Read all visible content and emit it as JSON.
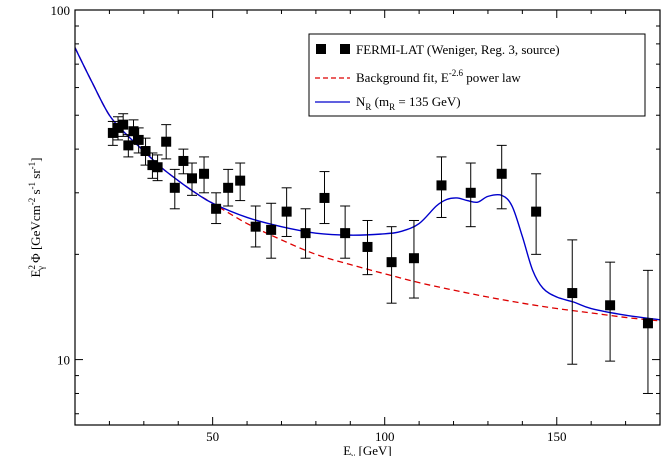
{
  "chart_data": {
    "type": "scatter",
    "xlabel_main": "E",
    "xlabel_sub": "γ",
    "xlabel_unit": " [GeV]",
    "ylabel_parts": {
      "base1": "E",
      "sup1": "2",
      "sub1": "γ",
      "mid": " Φ [GeVcm",
      "sup2": "-2",
      "s": " s",
      "sup3": "-1",
      "sr": " sr",
      "sup4": "-1",
      "end": "]"
    },
    "xlim": [
      10,
      180
    ],
    "ylim": [
      6.5,
      100
    ],
    "yscale": "log",
    "x_ticks": [
      50,
      100,
      150
    ],
    "x_tick_labels": [
      "50",
      "100",
      "150"
    ],
    "y_ticks": [
      10,
      100
    ],
    "y_tick_labels": [
      "10",
      "100"
    ],
    "legend_position": "top-right",
    "legend": {
      "data_label": "FERMI-LAT (Weniger, Reg. 3, source)",
      "bg_label_pre": "Background fit, E",
      "bg_label_sup": "-2.6",
      "bg_label_post": " power law",
      "model_label_pre": "N",
      "model_label_sub1": "R",
      "model_label_mid": " (m",
      "model_label_sub2": "R",
      "model_label_post": " = 135 GeV)"
    },
    "colors": {
      "data": "#000000",
      "background_fit": "#dd0000",
      "model": "#0000cc"
    },
    "series": [
      {
        "kind": "data",
        "points": [
          {
            "x": 21.0,
            "y": 44.5,
            "lo": 41.0,
            "hi": 48.0
          },
          {
            "x": 22.5,
            "y": 46.0,
            "lo": 42.5,
            "hi": 49.5
          },
          {
            "x": 24.0,
            "y": 47.0,
            "lo": 43.5,
            "hi": 50.5
          },
          {
            "x": 25.5,
            "y": 41.0,
            "lo": 38.0,
            "hi": 44.0
          },
          {
            "x": 27.0,
            "y": 45.0,
            "lo": 41.5,
            "hi": 48.5
          },
          {
            "x": 28.5,
            "y": 42.5,
            "lo": 39.0,
            "hi": 46.0
          },
          {
            "x": 30.5,
            "y": 39.5,
            "lo": 36.0,
            "hi": 43.0
          },
          {
            "x": 32.5,
            "y": 36.0,
            "lo": 33.0,
            "hi": 39.0
          },
          {
            "x": 34.0,
            "y": 35.5,
            "lo": 32.5,
            "hi": 38.5
          },
          {
            "x": 36.5,
            "y": 42.0,
            "lo": 37.5,
            "hi": 47.0
          },
          {
            "x": 39.0,
            "y": 31.0,
            "lo": 27.0,
            "hi": 35.0
          },
          {
            "x": 41.5,
            "y": 37.0,
            "lo": 34.0,
            "hi": 40.0
          },
          {
            "x": 44.0,
            "y": 33.0,
            "lo": 29.5,
            "hi": 36.5
          },
          {
            "x": 47.5,
            "y": 34.0,
            "lo": 30.0,
            "hi": 38.0
          },
          {
            "x": 51.0,
            "y": 27.0,
            "lo": 24.5,
            "hi": 30.0
          },
          {
            "x": 54.5,
            "y": 31.0,
            "lo": 27.5,
            "hi": 35.0
          },
          {
            "x": 58.0,
            "y": 32.5,
            "lo": 28.5,
            "hi": 36.5
          },
          {
            "x": 62.5,
            "y": 24.0,
            "lo": 21.0,
            "hi": 27.5
          },
          {
            "x": 67.0,
            "y": 23.5,
            "lo": 19.5,
            "hi": 28.0
          },
          {
            "x": 71.5,
            "y": 26.5,
            "lo": 22.5,
            "hi": 31.0
          },
          {
            "x": 77.0,
            "y": 23.0,
            "lo": 19.5,
            "hi": 27.0
          },
          {
            "x": 82.5,
            "y": 29.0,
            "lo": 24.5,
            "hi": 34.5
          },
          {
            "x": 88.5,
            "y": 23.0,
            "lo": 19.5,
            "hi": 27.5
          },
          {
            "x": 95.0,
            "y": 21.0,
            "lo": 17.5,
            "hi": 25.0
          },
          {
            "x": 102.0,
            "y": 19.0,
            "lo": 14.5,
            "hi": 24.0
          },
          {
            "x": 108.5,
            "y": 19.5,
            "lo": 15.0,
            "hi": 25.0
          },
          {
            "x": 116.5,
            "y": 31.5,
            "lo": 25.5,
            "hi": 38.0
          },
          {
            "x": 125.0,
            "y": 30.0,
            "lo": 24.0,
            "hi": 36.5
          },
          {
            "x": 134.0,
            "y": 34.0,
            "lo": 27.0,
            "hi": 41.0
          },
          {
            "x": 144.0,
            "y": 26.5,
            "lo": 20.0,
            "hi": 34.0
          },
          {
            "x": 154.5,
            "y": 15.5,
            "lo": 9.7,
            "hi": 22.0
          },
          {
            "x": 165.5,
            "y": 14.3,
            "lo": 9.9,
            "hi": 19.0
          },
          {
            "x": 176.5,
            "y": 12.7,
            "lo": 8.0,
            "hi": 18.0
          }
        ]
      },
      {
        "kind": "background_fit",
        "x": [
          10,
          15,
          20,
          25,
          30,
          35,
          40,
          45,
          50,
          60,
          70,
          80,
          90,
          100,
          110,
          120,
          130,
          140,
          150,
          160,
          170,
          180
        ],
        "y": [
          78,
          62,
          50,
          44,
          39.5,
          35.5,
          32.5,
          30,
          28,
          24.5,
          22,
          20,
          18.7,
          17.6,
          16.6,
          15.8,
          15.1,
          14.5,
          14.0,
          13.6,
          13.2,
          12.9
        ]
      },
      {
        "kind": "model",
        "x": [
          10,
          15,
          20,
          25,
          30,
          35,
          40,
          45,
          50,
          60,
          70,
          80,
          90,
          100,
          105,
          110,
          115,
          118,
          121,
          124,
          127,
          130,
          134,
          137,
          140,
          143,
          146,
          150,
          155,
          160,
          170,
          180
        ],
        "y": [
          78,
          62,
          50,
          44,
          39.5,
          35.5,
          32.5,
          30,
          28,
          25.5,
          24,
          23,
          22.7,
          22.9,
          23.3,
          24.5,
          27.5,
          28.7,
          29.0,
          28.5,
          28.2,
          29.3,
          29.5,
          27.5,
          22.5,
          18.0,
          16.0,
          15.1,
          14.6,
          14.0,
          13.4,
          13.0
        ]
      }
    ]
  }
}
